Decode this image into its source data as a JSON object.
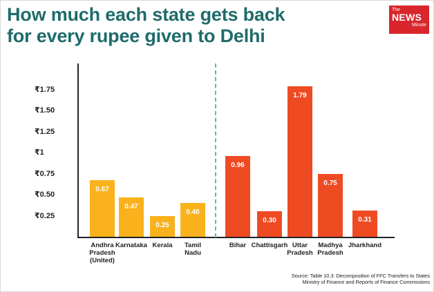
{
  "header": {
    "title_lines": [
      "How much each state gets back",
      "for every rupee given to Delhi"
    ]
  },
  "logo": {
    "the": "The",
    "news": "NEWS",
    "minute": "Minute"
  },
  "chart_data": {
    "type": "bar",
    "title": "How much each state gets back for every rupee given to Delhi",
    "y_tick_labels": [
      "₹1.75",
      "₹1.50",
      "₹1.25",
      "₹1",
      "₹0.75",
      "₹0.50",
      "₹0.25"
    ],
    "y_ticks": [
      1.75,
      1.5,
      1.25,
      1,
      0.75,
      0.5,
      0.25
    ],
    "ylim": [
      0,
      1.9
    ],
    "grid": false,
    "categories": [
      [
        "Andhra",
        "Pradesh",
        "(United)"
      ],
      [
        "Karnataka"
      ],
      [
        "Kerala"
      ],
      [
        "Tamil",
        "Nadu"
      ],
      [
        "Bihar"
      ],
      [
        "Chattisgarh"
      ],
      [
        "Uttar",
        "Pradesh"
      ],
      [
        "Madhya",
        "Pradesh"
      ],
      [
        "Jharkhand"
      ]
    ],
    "values": [
      0.67,
      0.47,
      0.25,
      0.4,
      0.96,
      0.3,
      1.79,
      0.75,
      0.31
    ],
    "value_labels": [
      "0.67",
      "0.47",
      "0.25",
      "0.40",
      "0.96",
      "0.30",
      "1.79",
      "0.75",
      "0.31"
    ],
    "group": [
      1,
      1,
      1,
      1,
      2,
      2,
      2,
      2,
      2
    ],
    "colors": {
      "group1": "#f9b21c",
      "group2": "#ef4b23",
      "title": "#1f6b6b",
      "divider": "#5bb8c0"
    }
  },
  "source": {
    "lines": [
      "Source: Table 10.3: Decomposition of FFC Transfers to States",
      "Ministry of Finance and Reports of Finance Commissions"
    ]
  }
}
